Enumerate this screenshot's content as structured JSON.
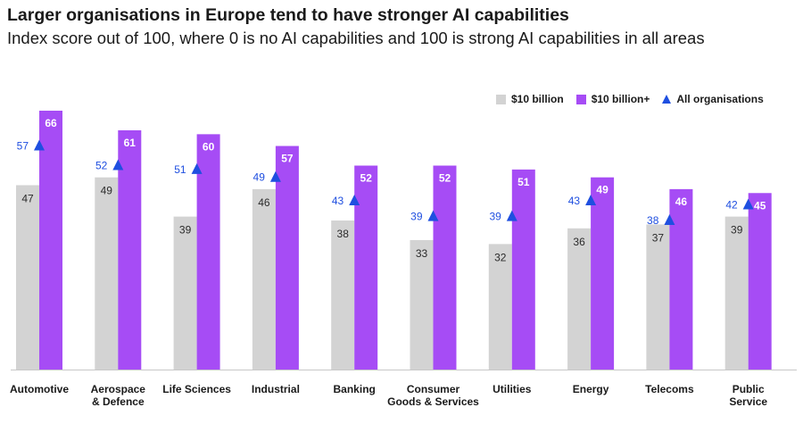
{
  "title": "Larger organisations in Europe tend to have stronger AI capabilities",
  "subtitle": "Index score out of 100, where 0 is no AI capabilities and 100 is strong AI capabilities in all areas",
  "colors": {
    "small": "#d3d3d3",
    "large": "#a64cf5",
    "all": "#1f4fe0",
    "text": "#1a1a1a"
  },
  "legend": {
    "small_label": "$10 billion",
    "large_label": "$10 billion+",
    "all_label": "All organisations"
  },
  "chart_data": {
    "type": "bar",
    "title": "Larger organisations in Europe tend to have stronger AI capabilities",
    "subtitle": "Index score out of 100, where 0 is no AI capabilities and 100 is strong AI capabilities in all areas",
    "xlabel": "",
    "ylabel": "",
    "ylim": [
      0,
      70
    ],
    "grid": false,
    "legend_position": "top-right",
    "categories": [
      [
        "Automotive"
      ],
      [
        "Aerospace",
        "& Defence"
      ],
      [
        "Life Sciences"
      ],
      [
        "Industrial"
      ],
      [
        "Banking"
      ],
      [
        "Consumer",
        "Goods & Services"
      ],
      [
        "Utilities"
      ],
      [
        "Energy"
      ],
      [
        "Telecoms"
      ],
      [
        "Public",
        "Service"
      ]
    ],
    "series": [
      {
        "name": "$10 billion",
        "type": "bar",
        "values": [
          47,
          49,
          39,
          46,
          38,
          33,
          32,
          36,
          37,
          39
        ]
      },
      {
        "name": "$10 billion+",
        "type": "bar",
        "values": [
          66,
          61,
          60,
          57,
          52,
          52,
          51,
          49,
          46,
          45
        ]
      },
      {
        "name": "All organisations",
        "type": "marker",
        "values": [
          57,
          52,
          51,
          49,
          43,
          39,
          39,
          43,
          38,
          42
        ]
      }
    ]
  }
}
